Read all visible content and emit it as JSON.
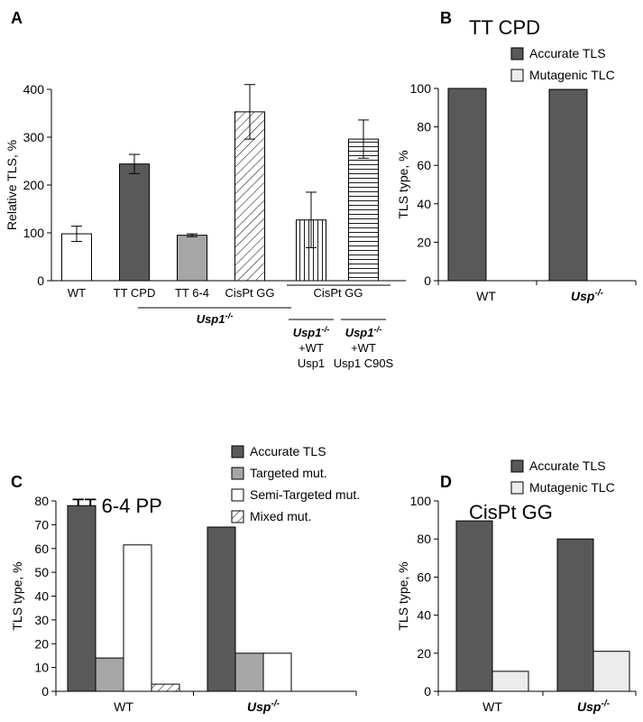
{
  "panels": [
    {
      "letter": "A"
    },
    {
      "letter": "B"
    },
    {
      "letter": "C"
    },
    {
      "letter": "D"
    }
  ],
  "chart_data": [
    {
      "type": "bar",
      "panel": "A",
      "title": "",
      "xlabel": "",
      "ylabel": "Relative TLS, %",
      "ylim": [
        0,
        400
      ],
      "yticks": [
        "0",
        "100",
        "200",
        "300",
        "400"
      ],
      "categories": [
        "WT",
        "TT CPD",
        "TT 6-4",
        "CisPt GG",
        "",
        ""
      ],
      "values": [
        98,
        244,
        95,
        353,
        127,
        296
      ],
      "errors": [
        16,
        20,
        3,
        57,
        58,
        40
      ],
      "fills": [
        "white",
        "dark",
        "light",
        "diag",
        "vert",
        "horiz"
      ],
      "group_labels": [
        {
          "text": "CisPt GG"
        },
        {
          "prefix": "Usp1",
          "sup": "-/-"
        }
      ],
      "sub_labels": [
        {
          "gene": "Usp1",
          "sup": "-/-",
          "line2": "+WT",
          "line3": "Usp1"
        },
        {
          "gene": "Usp1",
          "sup": "-/-",
          "line2": "+WT",
          "line3": "Usp1 C90S"
        }
      ]
    },
    {
      "type": "bar",
      "panel": "B",
      "title": "TT CPD",
      "ylabel": "TLS type, %",
      "ylim": [
        0,
        100
      ],
      "yticks": [
        "0",
        "20",
        "40",
        "60",
        "80",
        "100"
      ],
      "categories": [
        {
          "text": "WT"
        },
        {
          "gene": "Usp",
          "sup": "-/-"
        }
      ],
      "series": [
        {
          "name": "Accurate TLS",
          "color": "#595959",
          "values": [
            100,
            99.5
          ]
        },
        {
          "name": "Mutagenic TLC",
          "color": "#ececec",
          "values": [
            0,
            0
          ]
        }
      ],
      "legend_position": "top-right"
    },
    {
      "type": "bar",
      "panel": "C",
      "title": "TT 6-4 PP",
      "ylabel": "TLS type, %",
      "ylim": [
        0,
        80
      ],
      "yticks": [
        "0",
        "10",
        "20",
        "30",
        "40",
        "50",
        "60",
        "70",
        "80"
      ],
      "categories": [
        {
          "text": "WT"
        },
        {
          "gene": "Usp",
          "sup": "-/-"
        }
      ],
      "series": [
        {
          "name": "Accurate TLS",
          "color": "#595959",
          "values": [
            78,
            69
          ]
        },
        {
          "name": "Targeted mut.",
          "color": "#a6a6a6",
          "values": [
            14,
            16
          ]
        },
        {
          "name": "Semi-Targeted mut.",
          "color": "#ffffff",
          "values": [
            61.5,
            16
          ]
        },
        {
          "name": "Mixed mut.",
          "color": "diag",
          "values": [
            3,
            0
          ]
        }
      ],
      "legend_position": "top-right"
    },
    {
      "type": "bar",
      "panel": "D",
      "title": "CisPt GG",
      "ylabel": "TLS type, %",
      "ylim": [
        0,
        100
      ],
      "yticks": [
        "0",
        "20",
        "40",
        "60",
        "80",
        "100"
      ],
      "categories": [
        {
          "text": "WT"
        },
        {
          "gene": "Usp",
          "sup": "-/-"
        }
      ],
      "series": [
        {
          "name": "Accurate TLS",
          "color": "#595959",
          "values": [
            89.5,
            80
          ]
        },
        {
          "name": "Mutagenic TLC",
          "color": "#ececec",
          "values": [
            10.5,
            21
          ]
        }
      ],
      "legend_position": "top-right"
    }
  ]
}
